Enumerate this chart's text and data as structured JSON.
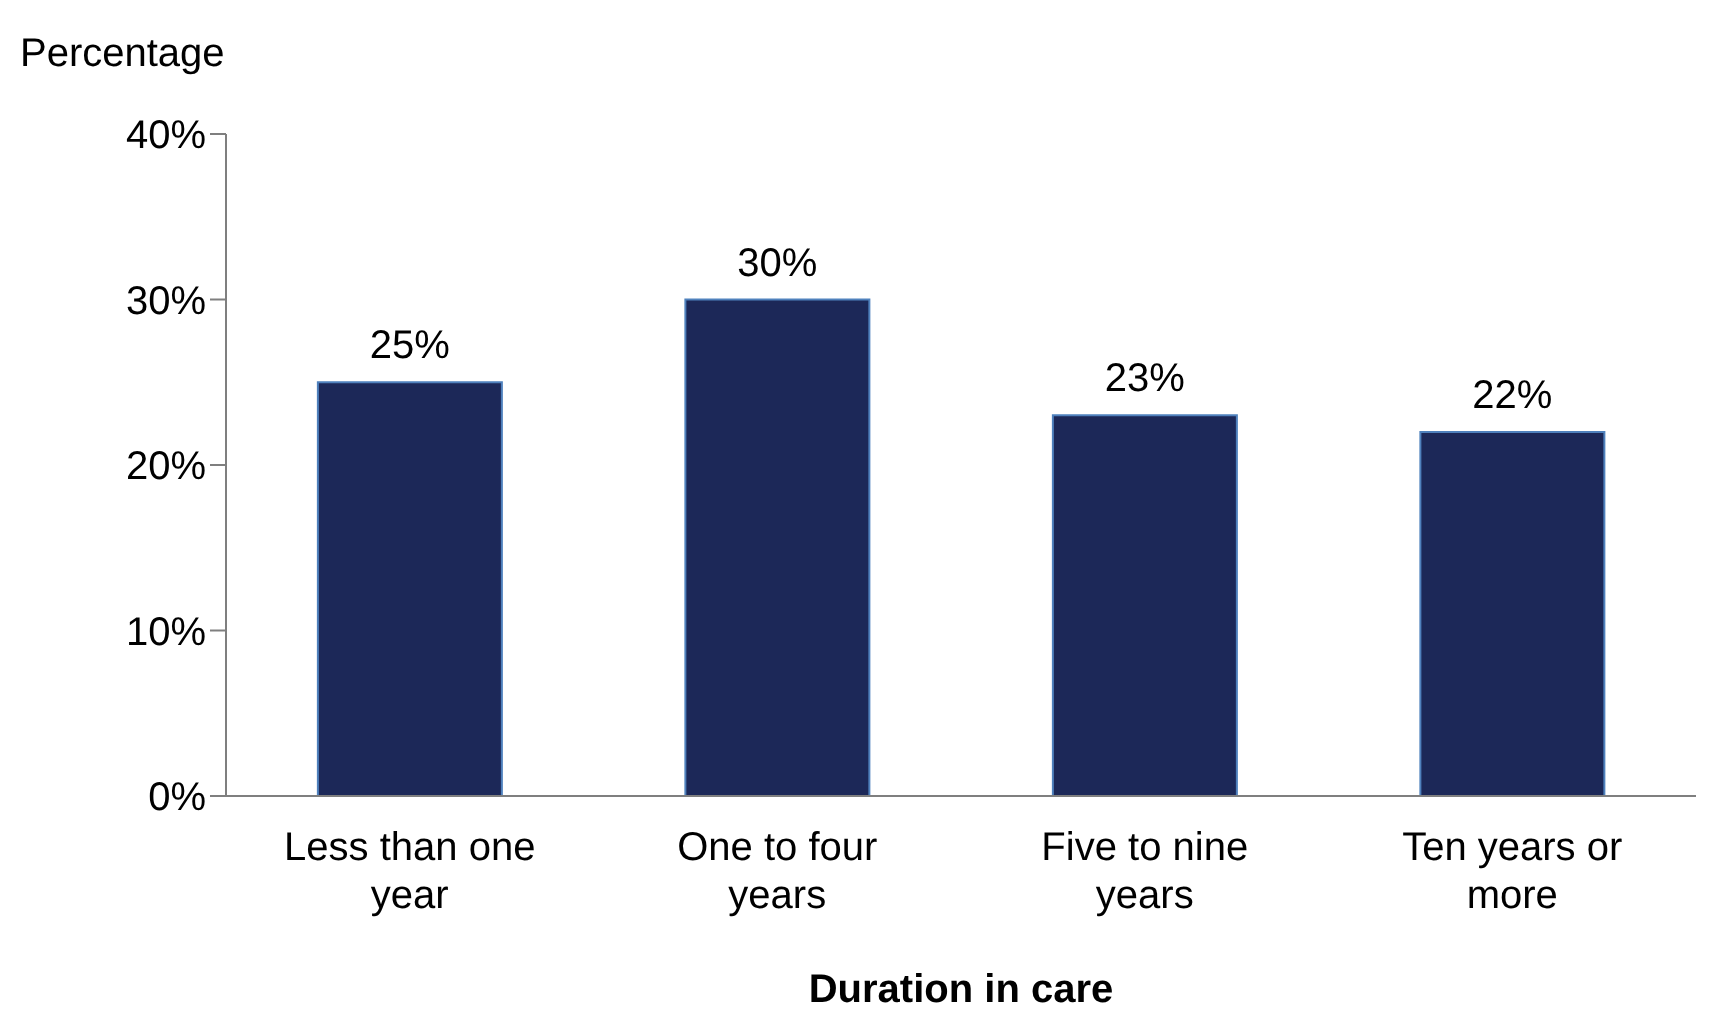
{
  "chart_data": {
    "type": "bar",
    "ylabel": "Percentage",
    "xlabel": "Duration in care",
    "categories": [
      "Less than one year",
      "One to four years",
      "Five to nine years",
      "Ten years or more"
    ],
    "values": [
      25,
      30,
      23,
      22
    ],
    "color": "#1c2858",
    "value_labels": [
      "25%",
      "30%",
      "23%",
      "22%"
    ],
    "ylim": [
      0,
      40
    ],
    "yticks": [
      {
        "value": 0,
        "label": "0%"
      },
      {
        "value": 10,
        "label": "10%"
      },
      {
        "value": 20,
        "label": "20%"
      },
      {
        "value": 30,
        "label": "30%"
      },
      {
        "value": 40,
        "label": "40%"
      }
    ],
    "grid": false,
    "legend": false
  }
}
